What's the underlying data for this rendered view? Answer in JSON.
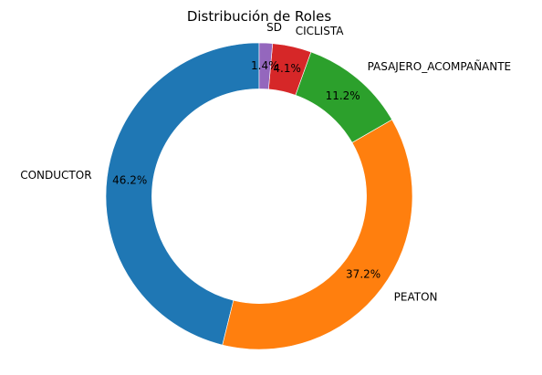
{
  "chart_data": {
    "type": "pie",
    "variant": "donut",
    "title": "Distribución de Roles",
    "start_angle_deg": 90,
    "direction": "counterclockwise",
    "hole_fraction": 0.7,
    "slices": [
      {
        "label": "CONDUCTOR",
        "value": 46.2,
        "pct_label": "46.2%",
        "color": "#1f77b4"
      },
      {
        "label": "PEATON",
        "value": 37.2,
        "pct_label": "37.2%",
        "color": "#ff7f0e"
      },
      {
        "label": "PASAJERO_ACOMPAÑANTE",
        "value": 11.2,
        "pct_label": "11.2%",
        "color": "#2ca02c"
      },
      {
        "label": "CICLISTA",
        "value": 4.1,
        "pct_label": "4.1%",
        "color": "#d62728"
      },
      {
        "label": "SD",
        "value": 1.4,
        "pct_label": "1.4%",
        "color": "#9467bd"
      }
    ]
  }
}
